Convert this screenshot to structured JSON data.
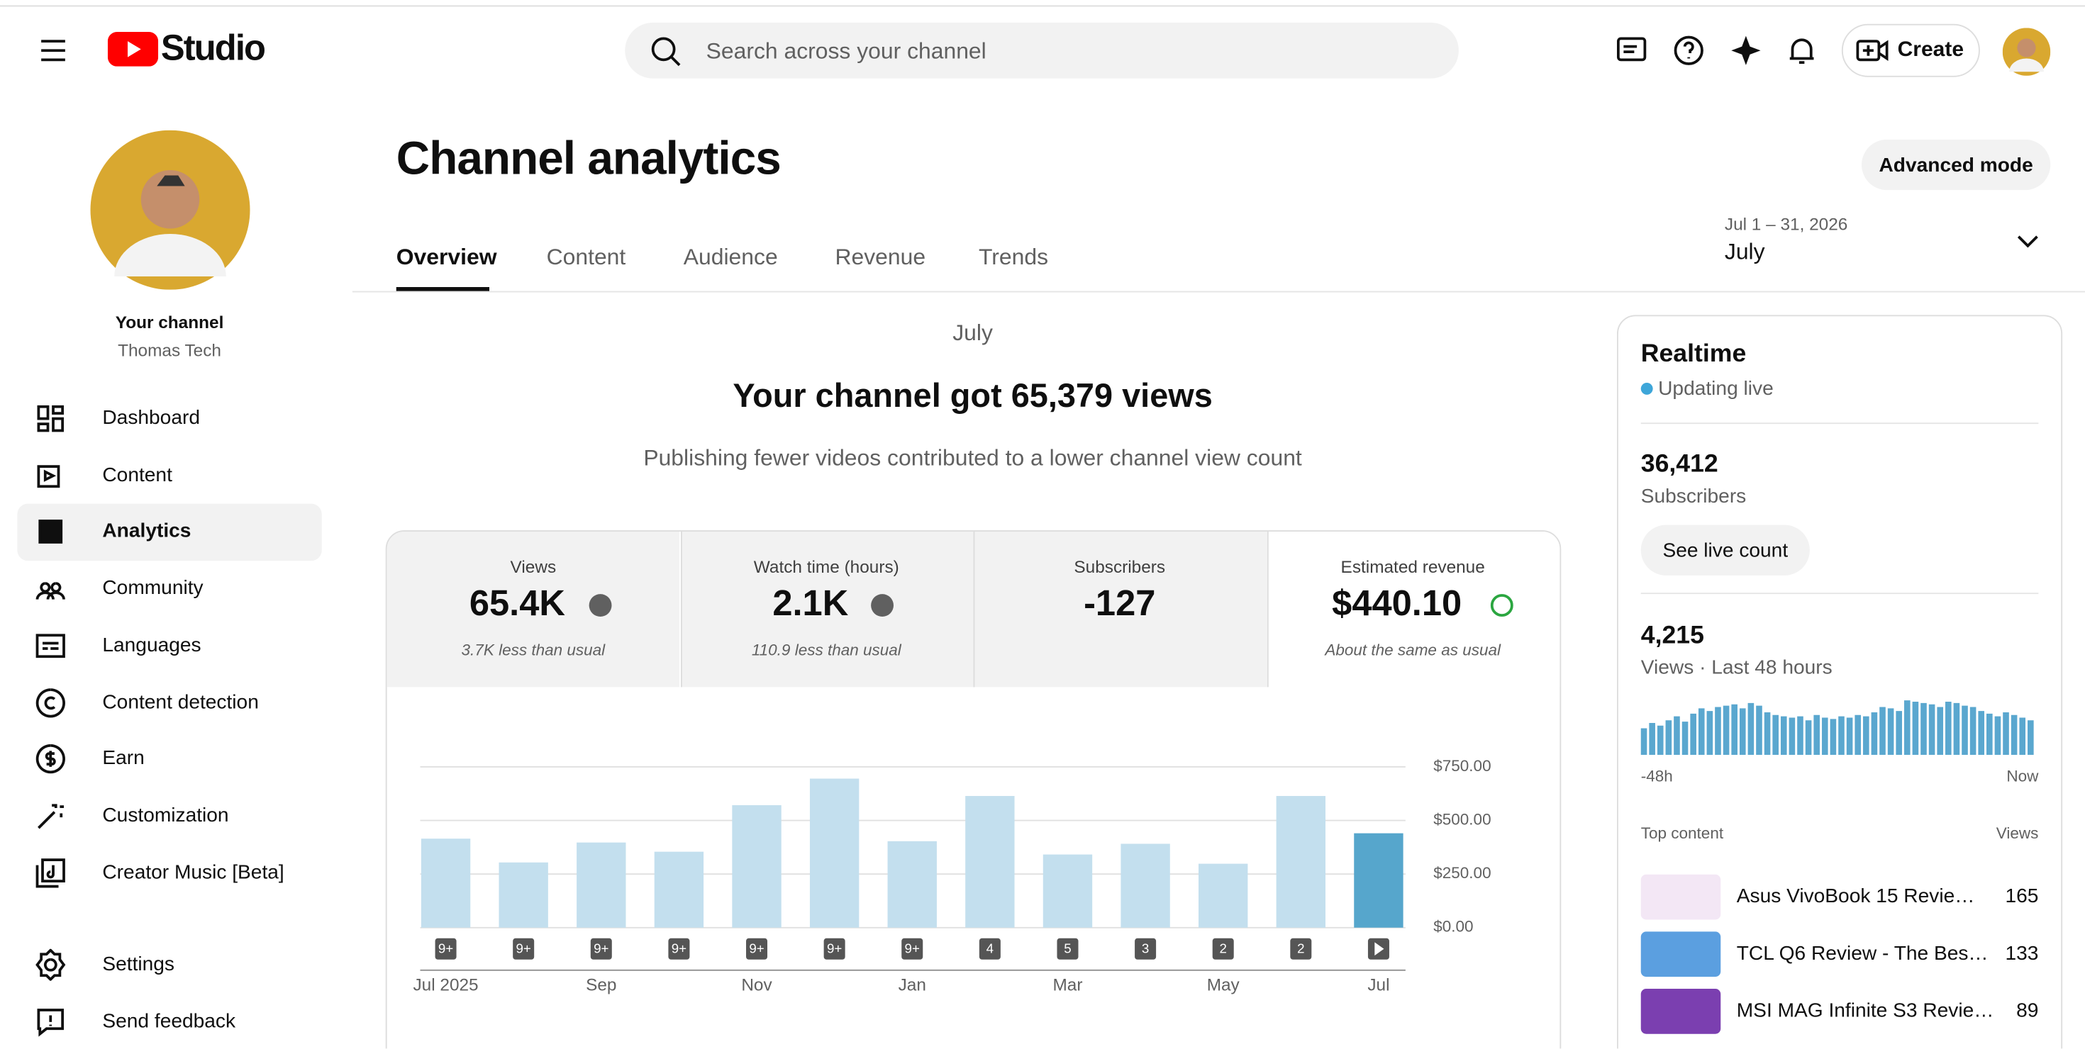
{
  "header": {
    "logo": "Studio",
    "search_placeholder": "Search across your channel",
    "create": "Create"
  },
  "sidebar": {
    "channel_label": "Your channel",
    "channel_name": "Thomas Tech",
    "nav": [
      "Dashboard",
      "Content",
      "Analytics",
      "Community",
      "Languages",
      "Content detection",
      "Earn",
      "Customization",
      "Creator Music [Beta]"
    ],
    "footer": [
      "Settings",
      "Send feedback"
    ]
  },
  "main": {
    "title": "Channel analytics",
    "advanced": "Advanced mode",
    "tabs": [
      "Overview",
      "Content",
      "Audience",
      "Revenue",
      "Trends"
    ],
    "date_range": "Jul 1 – 31, 2026",
    "period": "July",
    "section_period": "July",
    "headline": "Your channel got 65,379 views",
    "subhead": "Publishing fewer videos contributed to a lower channel view count",
    "metrics": [
      {
        "label": "Views",
        "value": "65.4K",
        "note": "3.7K less than usual"
      },
      {
        "label": "Watch time (hours)",
        "value": "2.1K",
        "note": "110.9 less than usual"
      },
      {
        "label": "Subscribers",
        "value": "-127"
      },
      {
        "label": "Estimated revenue",
        "value": "$440.10",
        "note": "About the same as usual"
      }
    ]
  },
  "chart_data": {
    "type": "bar",
    "categories": [
      "Jul 2025",
      null,
      "Sep",
      null,
      "Nov",
      null,
      "Jan",
      null,
      "Mar",
      null,
      "May",
      null,
      "Jul"
    ],
    "badges": [
      "9+",
      "9+",
      "9+",
      "9+",
      "9+",
      "9+",
      "9+",
      "4",
      "5",
      "3",
      "2",
      "2",
      null
    ],
    "values": [
      415,
      304,
      397,
      354,
      571,
      695,
      403,
      614,
      341,
      391,
      298,
      614,
      440.1
    ],
    "color": "#c3dfee",
    "highlight_color": "#56a6cc",
    "ylim": [
      0,
      750
    ],
    "yticks": [
      {
        "value": 0,
        "label": "$0.00"
      },
      {
        "value": 250,
        "label": "$250.00"
      },
      {
        "value": 500,
        "label": "$500.00"
      },
      {
        "value": 750,
        "label": "$750.00"
      }
    ],
    "grid": true
  },
  "realtime": {
    "title": "Realtime",
    "status": "Updating live",
    "subscribers": "36,412",
    "subscribers_label": "Subscribers",
    "see_live": "See live count",
    "views": "4,215",
    "views_label": "Views · Last 48 hours",
    "start_label": "-48h",
    "end_label": "Now",
    "color": "#5aa7cf",
    "hourly_views": [
      40,
      48,
      44,
      52,
      58,
      50,
      62,
      70,
      66,
      72,
      74,
      76,
      70,
      78,
      74,
      64,
      60,
      58,
      56,
      58,
      52,
      60,
      56,
      54,
      58,
      56,
      60,
      58,
      64,
      72,
      70,
      66,
      82,
      80,
      78,
      76,
      72,
      80,
      78,
      74,
      72,
      66,
      62,
      58,
      64,
      60,
      56,
      52
    ],
    "top_content_label": "Top content",
    "top_views_label": "Views",
    "top_content": [
      {
        "title": "Asus VivoBook 15 Revie…",
        "views": 165
      },
      {
        "title": "TCL Q6 Review - The Bes…",
        "views": 133
      },
      {
        "title": "MSI MAG Infinite S3 Revie…",
        "views": 89
      }
    ]
  }
}
